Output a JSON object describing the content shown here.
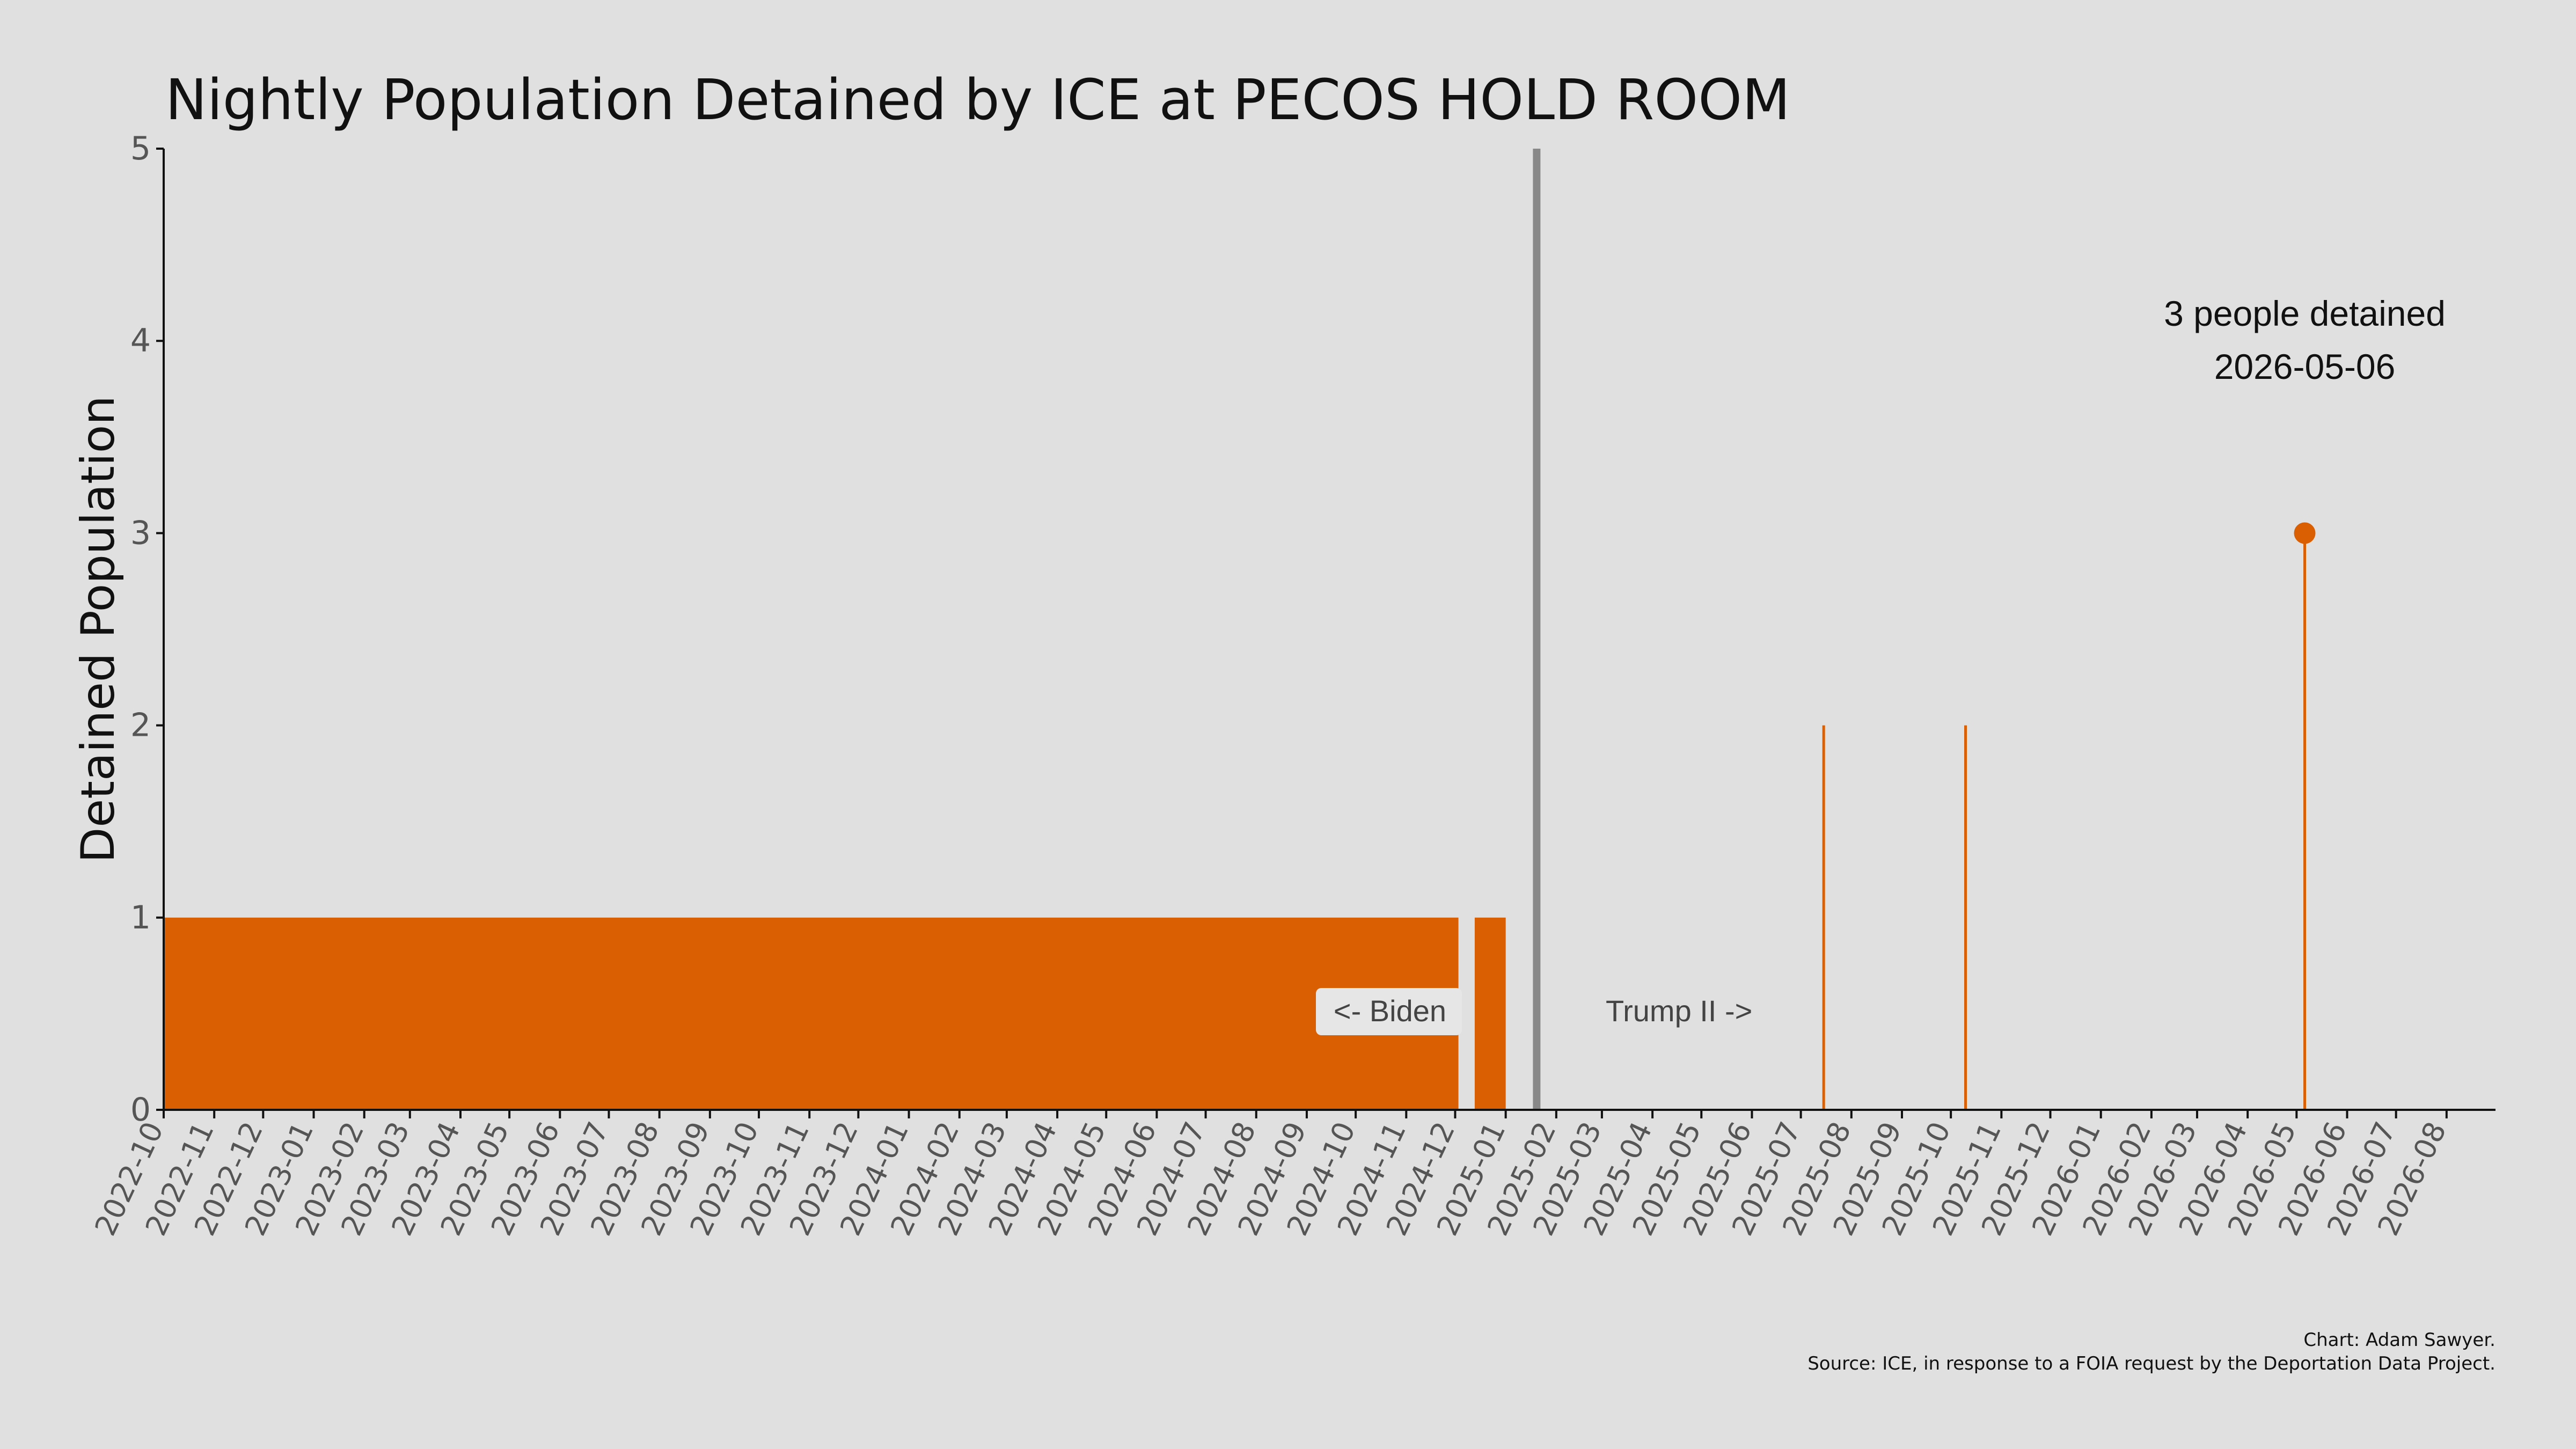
{
  "chart_data": {
    "type": "area",
    "title": "Nightly Population Detained by ICE at PECOS HOLD ROOM",
    "ylabel": "Detained Population",
    "xlabel": "",
    "ylim": [
      0,
      5
    ],
    "yticks": [
      "0",
      "1",
      "2",
      "3",
      "4",
      "5"
    ],
    "xlim": [
      "2022-10-01",
      "2026-08-31"
    ],
    "xticks": [
      "2022-10",
      "2022-11",
      "2022-12",
      "2023-01",
      "2023-02",
      "2023-03",
      "2023-04",
      "2023-05",
      "2023-06",
      "2023-07",
      "2023-08",
      "2023-09",
      "2023-10",
      "2023-11",
      "2023-12",
      "2024-01",
      "2024-02",
      "2024-03",
      "2024-04",
      "2024-05",
      "2024-06",
      "2024-07",
      "2024-08",
      "2024-09",
      "2024-10",
      "2024-11",
      "2024-12",
      "2025-01",
      "2025-02",
      "2025-03",
      "2025-04",
      "2025-05",
      "2025-06",
      "2025-07",
      "2025-08",
      "2025-09",
      "2025-10",
      "2025-11",
      "2025-12",
      "2026-01",
      "2026-02",
      "2026-03",
      "2026-04",
      "2026-05",
      "2026-06",
      "2026-07",
      "2026-08"
    ],
    "series_color": "#d95f02",
    "filled_periods": [
      {
        "start": "2022-10-01",
        "end": "2024-12-03",
        "value": 1
      },
      {
        "start": "2024-12-13",
        "end": "2025-01-01",
        "value": 1
      }
    ],
    "spikes": [
      {
        "date": "2025-07-15",
        "value": 2
      },
      {
        "date": "2025-10-10",
        "value": 2
      },
      {
        "date": "2026-05-06",
        "value": 3
      }
    ],
    "latest_point": {
      "date": "2026-05-06",
      "value": 3
    },
    "divider": {
      "date": "2025-01-20",
      "color": "#888888"
    },
    "annotation": {
      "line1": "3 people detained",
      "line2": "2026-05-06"
    },
    "era_labels": {
      "left": "<- Biden",
      "right": "Trump II ->"
    },
    "credits": {
      "line1": "Chart: Adam Sawyer.",
      "line2": "Source: ICE, in response to a FOIA request by the Deportation Data Project."
    },
    "grid": false,
    "legend": "none"
  }
}
